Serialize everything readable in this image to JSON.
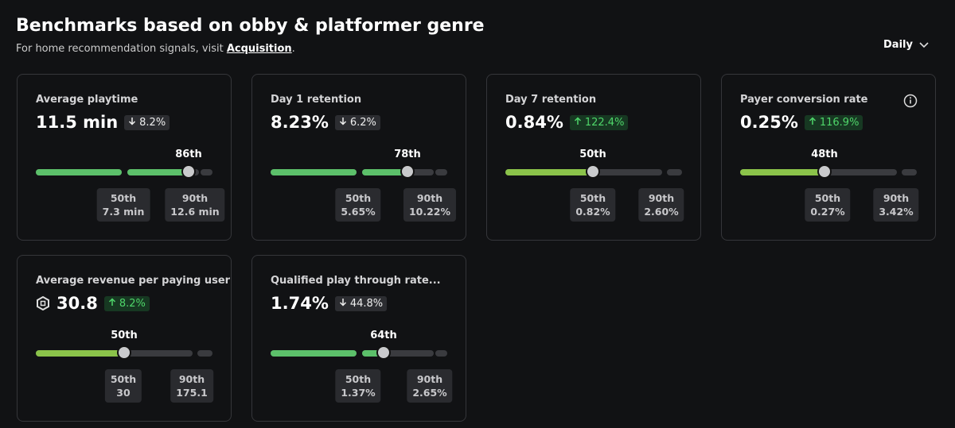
{
  "header": {
    "title": "Benchmarks based on obby & platformer genre",
    "subtitle": "For home recommendation signals, visit",
    "link": "Acquisition",
    "period": "Daily"
  },
  "cards": [
    {
      "title": "Average playtime",
      "value": "11.5 min",
      "trend": "down",
      "change": "8.2%",
      "percentile": "86th",
      "p50": {
        "label": "50th",
        "value": "7.3 min"
      },
      "p90": {
        "label": "90th",
        "value": "12.6 min"
      }
    },
    {
      "title": "Day 1 retention",
      "value": "8.23%",
      "trend": "down",
      "change": "6.2%",
      "percentile": "78th",
      "p50": {
        "label": "50th",
        "value": "5.65%"
      },
      "p90": {
        "label": "90th",
        "value": "10.22%"
      }
    },
    {
      "title": "Day 7 retention",
      "value": "0.84%",
      "trend": "up",
      "change": "122.4%",
      "percentile": "50th",
      "p50": {
        "label": "50th",
        "value": "0.82%"
      },
      "p90": {
        "label": "90th",
        "value": "2.60%"
      }
    },
    {
      "title": "Payer conversion rate",
      "value": "0.25%",
      "trend": "up",
      "change": "116.9%",
      "percentile": "48th",
      "p50": {
        "label": "50th",
        "value": "0.27%"
      },
      "p90": {
        "label": "90th",
        "value": "3.42%"
      }
    },
    {
      "title": "Average revenue per paying user",
      "value": "30.8",
      "trend": "up",
      "change": "8.2%",
      "percentile": "50th",
      "p50": {
        "label": "50th",
        "value": "30"
      },
      "p90": {
        "label": "90th",
        "value": "175.1"
      }
    },
    {
      "title": "Qualified play through rate...",
      "value": "1.74%",
      "trend": "down",
      "change": "44.8%",
      "percentile": "64th",
      "p50": {
        "label": "50th",
        "value": "1.37%"
      },
      "p90": {
        "label": "90th",
        "value": "2.65%"
      }
    }
  ]
}
